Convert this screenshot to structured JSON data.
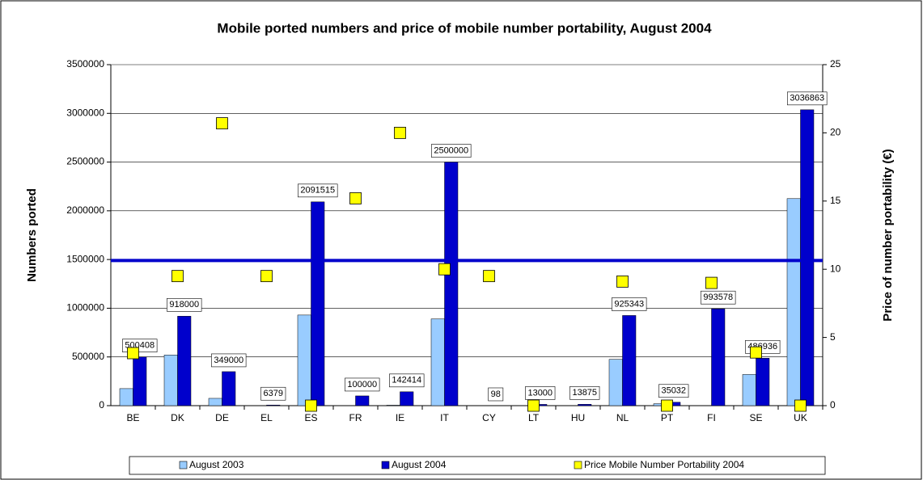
{
  "chart_data": {
    "type": "bar",
    "title": "Mobile ported numbers and price of mobile number portability, August 2004",
    "y_label": "Numbers ported",
    "y2_label": "Price of number portability (€)",
    "categories": [
      "BE",
      "DK",
      "DE",
      "EL",
      "ES",
      "FR",
      "IE",
      "IT",
      "CY",
      "LT",
      "HU",
      "NL",
      "PT",
      "FI",
      "SE",
      "UK"
    ],
    "series": [
      {
        "name": "August 2003",
        "type": "bar",
        "color": "#99ccff",
        "values": [
          175000,
          520000,
          75000,
          0,
          930000,
          0,
          5000,
          890000,
          0,
          0,
          0,
          475000,
          20000,
          0,
          320000,
          2125000
        ]
      },
      {
        "name": "August 2004",
        "type": "bar",
        "color": "#0000cc",
        "data_labels": true,
        "values": [
          500408,
          918000,
          349000,
          6379,
          2091515,
          100000,
          142414,
          2500000,
          98,
          13000,
          13875,
          925343,
          35032,
          993578,
          486936,
          3036863
        ]
      },
      {
        "name": "Price Mobile Number Portability 2004",
        "type": "scatter",
        "axis": "y2",
        "color": "#ffff00",
        "values": [
          3.85,
          9.5,
          20.7,
          9.5,
          0,
          15.2,
          20,
          10,
          9.5,
          0,
          null,
          9.1,
          0,
          9,
          3.9,
          0
        ]
      }
    ],
    "reference_line": {
      "value": 1490000,
      "color": "#0000cc"
    },
    "ylim": [
      0,
      3500000
    ],
    "yticks": [
      0,
      500000,
      1000000,
      1500000,
      2000000,
      2500000,
      3000000,
      3500000
    ],
    "y2lim": [
      0,
      25
    ],
    "y2ticks": [
      0,
      5,
      10,
      15,
      20,
      25
    ],
    "legend": "bottom"
  }
}
